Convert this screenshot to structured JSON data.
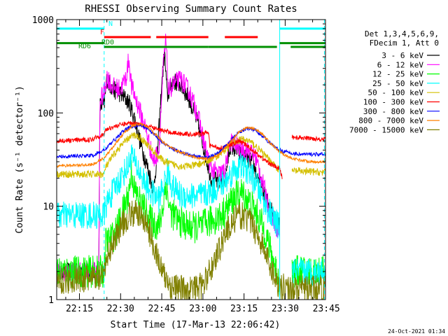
{
  "chart_data": {
    "type": "line",
    "title": "RHESSI Observing Summary Count Rates",
    "xlabel": "Start Time (17-Mar-13 22:06:42)",
    "ylabel": "Count Rate (s⁻¹ detector⁻¹)",
    "y_scale": "log",
    "ylim": [
      1,
      1000
    ],
    "xlim_minutes": [
      6.7,
      104.7
    ],
    "x_ticks": [
      {
        "minute": 15,
        "label": "22:15"
      },
      {
        "minute": 30,
        "label": "22:30"
      },
      {
        "minute": 45,
        "label": "22:45"
      },
      {
        "minute": 60,
        "label": "23:00"
      },
      {
        "minute": 75,
        "label": "23:15"
      },
      {
        "minute": 90,
        "label": "23:30"
      },
      {
        "minute": 105,
        "label": "23:45"
      }
    ],
    "y_ticks": [
      {
        "value": 1,
        "label": "1"
      },
      {
        "value": 10,
        "label": "10"
      },
      {
        "value": 100,
        "label": "100"
      },
      {
        "value": 1000,
        "label": "1000"
      }
    ],
    "legend_header": [
      "Det 1,3,4,5,6,9,",
      "FDecim 1, Att 0"
    ],
    "legend_position": "right",
    "timestamp": "24-Oct-2021 01:34",
    "flag_labels": {
      "n": "N",
      "f": "F",
      "rd0": "RD0",
      "rd6": "RD6"
    },
    "flags": {
      "n": {
        "value": 800,
        "color": "#00ffff",
        "intervals": [
          [
            6.7,
            24
          ],
          [
            88,
            104.7
          ]
        ]
      },
      "f": {
        "value": 650,
        "color": "#ff0000",
        "intervals": [
          [
            24,
            41
          ],
          [
            43,
            62
          ],
          [
            68,
            80
          ]
        ]
      },
      "rd0": {
        "value": 560,
        "color": "#009000",
        "intervals": [
          [
            6.7,
            24
          ],
          [
            88,
            104.7
          ]
        ]
      },
      "rd6": {
        "value": 510,
        "color": "#009000",
        "intervals": [
          [
            24,
            62
          ],
          [
            62,
            87
          ],
          [
            92,
            104.7
          ]
        ]
      }
    },
    "vertical_markers": [
      {
        "minute": 24,
        "color": "#00ffff",
        "style": "dashed"
      },
      {
        "minute": 88,
        "color": "#00ffff",
        "style": "solid"
      },
      {
        "minute": 104.3,
        "color": "#00ffff",
        "style": "dashed"
      }
    ],
    "series": [
      {
        "name": "3 - 6 keV",
        "color": "#000000",
        "noise": 0.2,
        "points": [
          [
            6.7,
            2
          ],
          [
            22,
            2
          ],
          [
            22.5,
            120
          ],
          [
            24,
            120
          ],
          [
            25,
            230
          ],
          [
            27,
            180
          ],
          [
            30,
            160
          ],
          [
            33,
            130
          ],
          [
            35,
            90
          ],
          [
            37,
            50
          ],
          [
            40,
            25
          ],
          [
            42,
            15
          ],
          [
            43.5,
            40
          ],
          [
            45,
            200
          ],
          [
            46,
            450
          ],
          [
            47,
            150
          ],
          [
            49,
            220
          ],
          [
            52,
            200
          ],
          [
            55,
            140
          ],
          [
            58,
            80
          ],
          [
            61,
            35
          ],
          [
            63,
            20
          ],
          [
            66,
            18
          ],
          [
            68,
            20
          ],
          [
            70,
            45
          ],
          [
            72,
            40
          ],
          [
            74,
            35
          ],
          [
            76,
            32
          ],
          [
            78,
            30
          ],
          [
            80,
            20
          ],
          [
            83,
            12
          ],
          [
            86,
            8
          ],
          [
            88,
            6
          ],
          [
            88.5,
            null
          ],
          [
            104.7,
            null
          ]
        ]
      },
      {
        "name": "6 - 12 keV",
        "color": "#ff00ff",
        "noise": 0.22,
        "points": [
          [
            6.7,
            2
          ],
          [
            22,
            2
          ],
          [
            22.5,
            140
          ],
          [
            24,
            160
          ],
          [
            25,
            250
          ],
          [
            27,
            190
          ],
          [
            30,
            180
          ],
          [
            32,
            240
          ],
          [
            33,
            380
          ],
          [
            34,
            190
          ],
          [
            36,
            130
          ],
          [
            39,
            70
          ],
          [
            42,
            30
          ],
          [
            44,
            40
          ],
          [
            45.5,
            300
          ],
          [
            46.5,
            600
          ],
          [
            47.5,
            170
          ],
          [
            49,
            200
          ],
          [
            52,
            230
          ],
          [
            55,
            170
          ],
          [
            58,
            100
          ],
          [
            61,
            40
          ],
          [
            63,
            25
          ],
          [
            66,
            22
          ],
          [
            68,
            24
          ],
          [
            70,
            50
          ],
          [
            72,
            45
          ],
          [
            74,
            42
          ],
          [
            76,
            40
          ],
          [
            79,
            35
          ],
          [
            81,
            22
          ],
          [
            84,
            10
          ],
          [
            86,
            7
          ],
          [
            88,
            5
          ],
          [
            88.5,
            null
          ],
          [
            104.7,
            null
          ]
        ]
      },
      {
        "name": "12 - 25 keV",
        "color": "#00ff00",
        "noise": 0.35,
        "points": [
          [
            6.7,
            2
          ],
          [
            24,
            2
          ],
          [
            24.5,
            4
          ],
          [
            28,
            5
          ],
          [
            31,
            9
          ],
          [
            33,
            14
          ],
          [
            34,
            24
          ],
          [
            35,
            15
          ],
          [
            38,
            10
          ],
          [
            41,
            7
          ],
          [
            44,
            6
          ],
          [
            45.5,
            10
          ],
          [
            46.5,
            18
          ],
          [
            48,
            9
          ],
          [
            51,
            7
          ],
          [
            55,
            6
          ],
          [
            59,
            6
          ],
          [
            63,
            7
          ],
          [
            67,
            8
          ],
          [
            71,
            12
          ],
          [
            74,
            14
          ],
          [
            77,
            11
          ],
          [
            80,
            8
          ],
          [
            83,
            5
          ],
          [
            85,
            3
          ],
          [
            87,
            2
          ],
          [
            88,
            1.5
          ],
          [
            88.5,
            null
          ],
          [
            92,
            null
          ],
          [
            92.5,
            2
          ],
          [
            104.7,
            2
          ]
        ]
      },
      {
        "name": "25 - 50 keV",
        "color": "#00ffff",
        "noise": 0.3,
        "points": [
          [
            6.7,
            8
          ],
          [
            24,
            8
          ],
          [
            24.5,
            10
          ],
          [
            27,
            14
          ],
          [
            30,
            20
          ],
          [
            33,
            28
          ],
          [
            34,
            38
          ],
          [
            35,
            30
          ],
          [
            38,
            20
          ],
          [
            41,
            14
          ],
          [
            44,
            12
          ],
          [
            46,
            18
          ],
          [
            47,
            24
          ],
          [
            49,
            16
          ],
          [
            52,
            13
          ],
          [
            56,
            13
          ],
          [
            60,
            13
          ],
          [
            64,
            15
          ],
          [
            68,
            18
          ],
          [
            71,
            24
          ],
          [
            74,
            27
          ],
          [
            77,
            23
          ],
          [
            80,
            16
          ],
          [
            83,
            10
          ],
          [
            86,
            7
          ],
          [
            88,
            6
          ],
          [
            88.5,
            null
          ],
          [
            92,
            null
          ],
          [
            92.5,
            2
          ],
          [
            104.7,
            2
          ]
        ]
      },
      {
        "name": "50 - 100 keV",
        "color": "#d4c000",
        "noise": 0.08,
        "points": [
          [
            6.7,
            22
          ],
          [
            24,
            22
          ],
          [
            24.5,
            26
          ],
          [
            27,
            34
          ],
          [
            30,
            44
          ],
          [
            33,
            54
          ],
          [
            35,
            58
          ],
          [
            37,
            55
          ],
          [
            40,
            45
          ],
          [
            43,
            36
          ],
          [
            46,
            30
          ],
          [
            49,
            28
          ],
          [
            52,
            27
          ],
          [
            56,
            27
          ],
          [
            60,
            29
          ],
          [
            64,
            33
          ],
          [
            68,
            40
          ],
          [
            71,
            48
          ],
          [
            74,
            52
          ],
          [
            77,
            50
          ],
          [
            80,
            42
          ],
          [
            83,
            34
          ],
          [
            86,
            28
          ],
          [
            88,
            24
          ],
          [
            89,
            null
          ],
          [
            92,
            null
          ],
          [
            92.5,
            24
          ],
          [
            104.7,
            23
          ]
        ]
      },
      {
        "name": "100 - 300 keV",
        "color": "#ff0000",
        "noise": 0.05,
        "points": [
          [
            6.7,
            50
          ],
          [
            20,
            52
          ],
          [
            20.5,
            55
          ],
          [
            24,
            58
          ],
          [
            24.5,
            66
          ],
          [
            28,
            72
          ],
          [
            31,
            76
          ],
          [
            34,
            78
          ],
          [
            37,
            76
          ],
          [
            40,
            72
          ],
          [
            44,
            66
          ],
          [
            48,
            62
          ],
          [
            52,
            60
          ],
          [
            56,
            59
          ],
          [
            60,
            60
          ],
          [
            62,
            62
          ],
          [
            62.5,
            45
          ],
          [
            66,
            42
          ],
          [
            70,
            45
          ],
          [
            73,
            50
          ],
          [
            76,
            45
          ],
          [
            79,
            38
          ],
          [
            82,
            32
          ],
          [
            85,
            28
          ],
          [
            88,
            25
          ],
          [
            89,
            20
          ],
          [
            92,
            null
          ],
          [
            92.5,
            55
          ],
          [
            104.7,
            52
          ]
        ]
      },
      {
        "name": "300 - 800 keV",
        "color": "#0000ff",
        "noise": 0.04,
        "points": [
          [
            6.7,
            34
          ],
          [
            20,
            35
          ],
          [
            24,
            40
          ],
          [
            28,
            52
          ],
          [
            31,
            64
          ],
          [
            34,
            72
          ],
          [
            37,
            74
          ],
          [
            40,
            68
          ],
          [
            43,
            56
          ],
          [
            46,
            46
          ],
          [
            50,
            40
          ],
          [
            54,
            36
          ],
          [
            58,
            34
          ],
          [
            62,
            33
          ],
          [
            66,
            38
          ],
          [
            70,
            50
          ],
          [
            73,
            62
          ],
          [
            76,
            68
          ],
          [
            79,
            66
          ],
          [
            82,
            56
          ],
          [
            85,
            46
          ],
          [
            88,
            40
          ],
          [
            92,
            37
          ],
          [
            96,
            36
          ],
          [
            100,
            36
          ],
          [
            104.7,
            36
          ]
        ]
      },
      {
        "name": "800 - 7000 keV",
        "color": "#ff8000",
        "noise": 0.03,
        "points": [
          [
            6.7,
            27
          ],
          [
            20,
            28
          ],
          [
            24,
            33
          ],
          [
            28,
            46
          ],
          [
            31,
            60
          ],
          [
            34,
            72
          ],
          [
            37,
            76
          ],
          [
            40,
            70
          ],
          [
            43,
            58
          ],
          [
            46,
            47
          ],
          [
            50,
            40
          ],
          [
            54,
            36
          ],
          [
            58,
            33
          ],
          [
            62,
            32
          ],
          [
            66,
            36
          ],
          [
            70,
            48
          ],
          [
            73,
            62
          ],
          [
            76,
            70
          ],
          [
            79,
            68
          ],
          [
            82,
            58
          ],
          [
            85,
            46
          ],
          [
            88,
            38
          ],
          [
            92,
            33
          ],
          [
            96,
            31
          ],
          [
            100,
            30
          ],
          [
            104.7,
            30
          ]
        ]
      },
      {
        "name": "7000 - 15000 keV",
        "color": "#808000",
        "noise": 0.3,
        "points": [
          [
            6.7,
            1.6
          ],
          [
            24,
            1.7
          ],
          [
            24.5,
            2.5
          ],
          [
            27,
            4
          ],
          [
            30,
            6
          ],
          [
            33,
            8
          ],
          [
            36,
            8.5
          ],
          [
            39,
            7
          ],
          [
            42,
            4
          ],
          [
            45,
            2
          ],
          [
            48,
            1.4
          ],
          [
            52,
            1.3
          ],
          [
            56,
            1.3
          ],
          [
            60,
            1.4
          ],
          [
            64,
            2.5
          ],
          [
            68,
            5
          ],
          [
            71,
            7
          ],
          [
            74,
            8
          ],
          [
            77,
            7
          ],
          [
            80,
            5
          ],
          [
            83,
            3
          ],
          [
            86,
            1.8
          ],
          [
            88,
            1.4
          ],
          [
            92,
            1.3
          ],
          [
            96,
            1.3
          ],
          [
            100,
            1.3
          ],
          [
            104.7,
            1.3
          ]
        ]
      }
    ]
  }
}
